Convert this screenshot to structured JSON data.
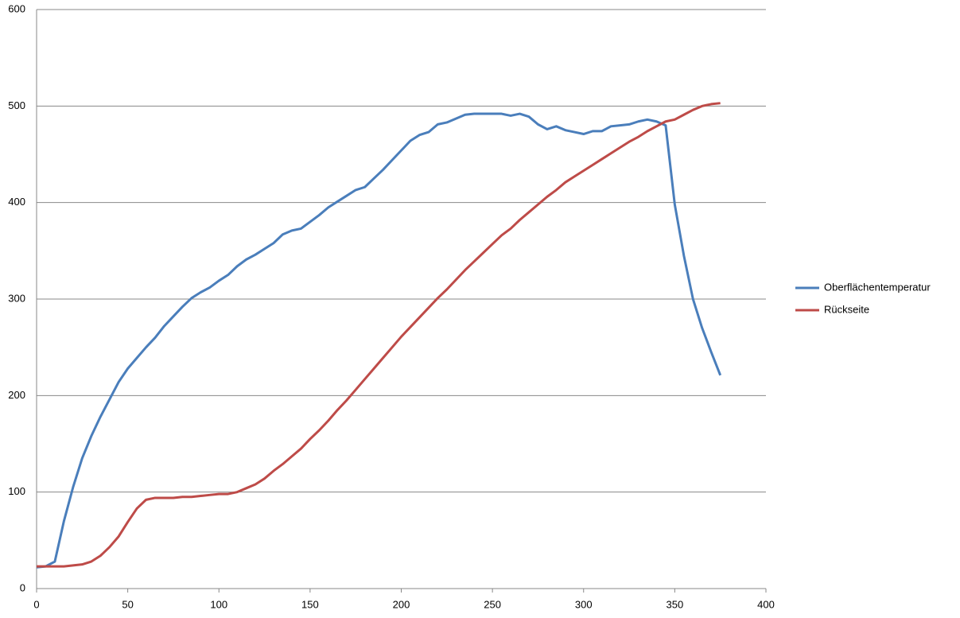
{
  "chart_data": {
    "type": "line",
    "x": [
      0,
      5,
      10,
      15,
      20,
      25,
      30,
      35,
      40,
      45,
      50,
      55,
      60,
      65,
      70,
      75,
      80,
      85,
      90,
      95,
      100,
      105,
      110,
      115,
      120,
      125,
      130,
      135,
      140,
      145,
      150,
      155,
      160,
      165,
      170,
      175,
      180,
      185,
      190,
      195,
      200,
      205,
      210,
      215,
      220,
      225,
      230,
      235,
      240,
      245,
      250,
      255,
      260,
      265,
      270,
      275,
      280,
      285,
      290,
      295,
      300,
      305,
      310,
      315,
      320,
      325,
      330,
      335,
      340,
      345,
      350,
      355,
      360,
      365,
      370,
      375
    ],
    "series": [
      {
        "name": "Oberflächentemperatur",
        "color": "#4a7ebb",
        "values": [
          22,
          23,
          28,
          70,
          105,
          135,
          158,
          178,
          196,
          214,
          228,
          239,
          250,
          260,
          272,
          282,
          292,
          301,
          307,
          312,
          319,
          325,
          334,
          341,
          346,
          352,
          358,
          367,
          371,
          373,
          380,
          387,
          395,
          401,
          407,
          413,
          416,
          425,
          434,
          444,
          454,
          464,
          470,
          473,
          481,
          483,
          487,
          491,
          492,
          492,
          492,
          492,
          490,
          492,
          489,
          481,
          476,
          479,
          475,
          473,
          471,
          474,
          474,
          479,
          480,
          481,
          484,
          486,
          484,
          480,
          398,
          345,
          300,
          270,
          245,
          221
        ]
      },
      {
        "name": "Rückseite",
        "color": "#be4b48",
        "values": [
          23,
          23,
          23,
          23,
          24,
          25,
          28,
          34,
          43,
          54,
          69,
          83,
          92,
          94,
          94,
          94,
          95,
          95,
          96,
          97,
          98,
          98,
          100,
          104,
          108,
          114,
          122,
          129,
          137,
          145,
          155,
          164,
          174,
          185,
          195,
          206,
          217,
          228,
          239,
          250,
          261,
          271,
          281,
          291,
          301,
          310,
          320,
          330,
          339,
          348,
          357,
          366,
          373,
          382,
          390,
          398,
          406,
          413,
          421,
          427,
          433,
          439,
          445,
          451,
          457,
          463,
          468,
          474,
          479,
          484,
          486,
          491,
          496,
          500,
          502,
          503
        ]
      }
    ],
    "xlim": [
      0,
      400
    ],
    "xticks": [
      0,
      50,
      100,
      150,
      200,
      250,
      300,
      350,
      400
    ],
    "ylim": [
      0,
      600
    ],
    "yticks": [
      0,
      100,
      200,
      300,
      400,
      500,
      600
    ],
    "grid": true,
    "legend": "right"
  }
}
